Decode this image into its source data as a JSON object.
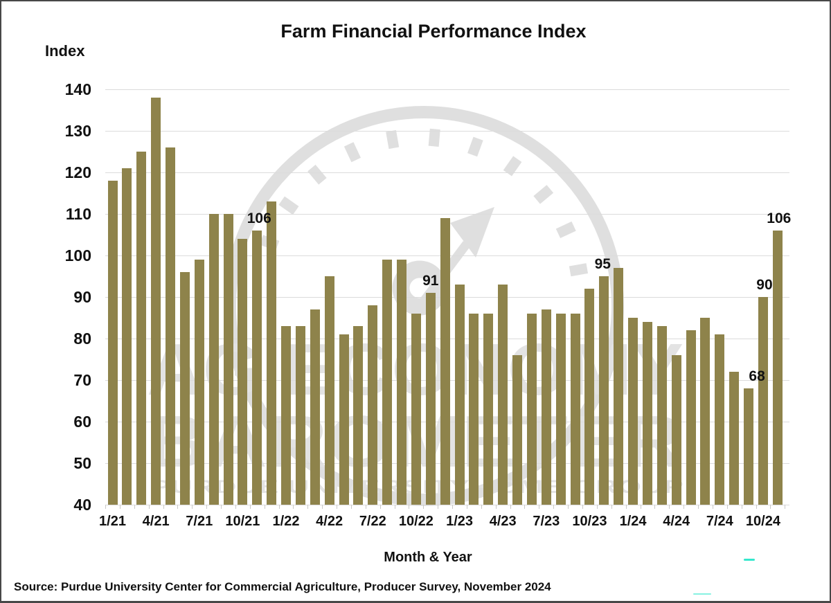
{
  "title": "Farm Financial Performance Index",
  "y_axis_label": "Index",
  "x_axis_label": "Month & Year",
  "source_line": "Source: Purdue University Center for Commercial Agriculture, Producer Survey, November 2024",
  "watermark": {
    "line1": "AG ECONOMY",
    "line2": "BAROMETER",
    "line3": "PURDUE UNIVERSITY · CME GROUP",
    "color": "#cfcfcf"
  },
  "artifact_color": "#35e8cd",
  "chart_data": {
    "type": "bar",
    "title": "Farm Financial Performance Index",
    "xlabel": "Month & Year",
    "ylabel": "Index",
    "ylim": [
      40,
      140
    ],
    "y_ticks": [
      40,
      50,
      60,
      70,
      80,
      90,
      100,
      110,
      120,
      130,
      140
    ],
    "grid": true,
    "legend": false,
    "bar_color": "#8e834b",
    "gridline_color": "#dbdbdb",
    "x_tick_every": 3,
    "x_tick_labels": [
      "1/21",
      "4/21",
      "7/21",
      "10/21",
      "1/22",
      "4/22",
      "7/22",
      "10/22",
      "1/23",
      "4/23",
      "7/23",
      "10/23",
      "1/24",
      "4/24",
      "7/24",
      "10/24"
    ],
    "months": [
      "1/21",
      "2/21",
      "3/21",
      "4/21",
      "5/21",
      "6/21",
      "7/21",
      "8/21",
      "9/21",
      "10/21",
      "11/21",
      "12/21",
      "1/22",
      "2/22",
      "3/22",
      "4/22",
      "5/22",
      "6/22",
      "7/22",
      "8/22",
      "9/22",
      "10/22",
      "11/22",
      "12/22",
      "1/23",
      "2/23",
      "3/23",
      "4/23",
      "5/23",
      "6/23",
      "7/23",
      "8/23",
      "9/23",
      "10/23",
      "11/23",
      "12/23",
      "1/24",
      "2/24",
      "3/24",
      "4/24",
      "5/24",
      "6/24",
      "7/24",
      "8/24",
      "9/24",
      "10/24",
      "11/24"
    ],
    "values": [
      118,
      121,
      125,
      138,
      126,
      96,
      99,
      110,
      110,
      104,
      106,
      113,
      83,
      83,
      87,
      95,
      81,
      83,
      88,
      99,
      99,
      86,
      91,
      109,
      93,
      86,
      86,
      93,
      76,
      86,
      87,
      86,
      86,
      92,
      95,
      97,
      85,
      84,
      83,
      76,
      82,
      85,
      81,
      72,
      68,
      90,
      106
    ],
    "annotations": [
      {
        "month": "11/21",
        "index": 10,
        "label": "106",
        "dx": 3
      },
      {
        "month": "11/22",
        "index": 22,
        "label": "91",
        "dx": 0
      },
      {
        "month": "11/23",
        "index": 34,
        "label": "95",
        "dx": -2
      },
      {
        "month": "9/24",
        "index": 44,
        "label": "68",
        "dx": 12
      },
      {
        "month": "10/24",
        "index": 45,
        "label": "90",
        "dx": 2
      },
      {
        "month": "11/24",
        "index": 46,
        "label": "106",
        "dx": 2
      }
    ]
  }
}
